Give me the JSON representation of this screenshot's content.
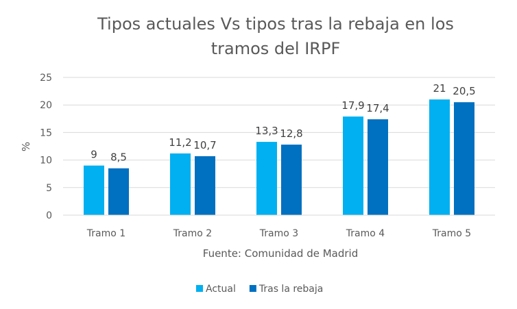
{
  "chart_data": {
    "type": "bar",
    "title_lines": [
      "Tipos actuales Vs tipos tras la rebaja en los",
      "tramos del IRPF"
    ],
    "categories": [
      "Tramo 1",
      "Tramo 2",
      "Tramo 3",
      "Tramo 4",
      "Tramo 5"
    ],
    "series": [
      {
        "name": "Actual",
        "color": "#00B0F0",
        "values": [
          9,
          11.2,
          13.3,
          17.9,
          21
        ],
        "labels": [
          "9",
          "11,2",
          "13,3",
          "17,9",
          "21"
        ]
      },
      {
        "name": "Tras la rebaja",
        "color": "#0070C0",
        "values": [
          8.5,
          10.7,
          12.8,
          17.4,
          20.5
        ],
        "labels": [
          "8,5",
          "10,7",
          "12,8",
          "17,4",
          "20,5"
        ]
      }
    ],
    "ylabel": "%",
    "xlabel": "Fuente: Comunidad de Madrid",
    "ylim": [
      0,
      25
    ],
    "yticks": [
      0,
      5,
      10,
      15,
      20,
      25
    ],
    "grid": true,
    "legend_position": "bottom",
    "grid_color": "#D9D9D9"
  }
}
